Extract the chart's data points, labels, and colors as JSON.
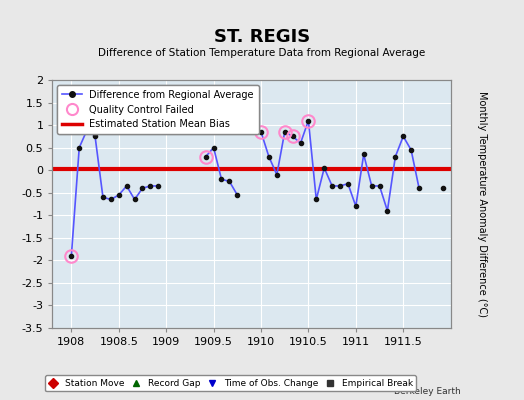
{
  "title": "ST. REGIS",
  "subtitle": "Difference of Station Temperature Data from Regional Average",
  "ylabel": "Monthly Temperature Anomaly Difference (°C)",
  "xlabel_bottom": "Berkeley Earth",
  "bias_value": 0.03,
  "background_color": "#e8e8e8",
  "plot_bg_color": "#dce8f0",
  "xlim": [
    1907.8,
    1912.0
  ],
  "ylim": [
    -3.5,
    2.0
  ],
  "xticks": [
    1908,
    1908.5,
    1909,
    1909.5,
    1910,
    1910.5,
    1911,
    1911.5
  ],
  "yticks": [
    -3.5,
    -3.0,
    -2.5,
    -2.0,
    -1.5,
    -1.0,
    -0.5,
    0.0,
    0.5,
    1.0,
    1.5,
    2.0
  ],
  "x_data": [
    1908.0,
    1908.083,
    1908.167,
    1908.25,
    1908.333,
    1908.417,
    1908.5,
    1908.583,
    1908.667,
    1908.75,
    1908.833,
    1908.917,
    1909.0,
    1909.083,
    1909.167,
    1909.25,
    1909.333,
    1909.417,
    1909.5,
    1909.583,
    1909.667,
    1909.75,
    1909.833,
    1909.917,
    1910.0,
    1910.083,
    1910.167,
    1910.25,
    1910.333,
    1910.417,
    1910.5,
    1910.583,
    1910.667,
    1910.75,
    1910.833,
    1910.917,
    1911.0,
    1911.083,
    1911.167,
    1911.25,
    1911.333,
    1911.417,
    1911.5,
    1911.583,
    1911.667,
    1911.75,
    1911.833,
    1911.917
  ],
  "y_data": [
    -1.9,
    0.5,
    0.9,
    0.75,
    -0.6,
    -0.65,
    -0.55,
    -0.35,
    -0.65,
    -0.4,
    -0.35,
    -0.35,
    null,
    null,
    null,
    null,
    null,
    0.3,
    0.5,
    -0.2,
    -0.25,
    -0.55,
    null,
    null,
    0.85,
    0.3,
    -0.1,
    0.85,
    0.75,
    0.6,
    1.1,
    -0.65,
    0.05,
    -0.35,
    -0.35,
    -0.3,
    -0.8,
    0.35,
    -0.35,
    -0.35,
    -0.9,
    0.3,
    0.75,
    0.45,
    -0.4,
    null,
    null,
    -0.4
  ],
  "qc_fail_indices": [
    0,
    17,
    24,
    27,
    28,
    30
  ],
  "line_color": "#5555ff",
  "dot_color": "#111111",
  "bias_color": "#dd0000",
  "qc_color": "#ff88cc",
  "legend_items": [
    {
      "label": "Difference from Regional Average",
      "type": "line",
      "color": "#5555ff"
    },
    {
      "label": "Quality Control Failed",
      "type": "circle",
      "color": "#ff88cc"
    },
    {
      "label": "Estimated Station Mean Bias",
      "type": "line",
      "color": "#dd0000"
    }
  ],
  "legend2_items": [
    {
      "label": "Station Move",
      "marker": "D",
      "color": "#cc0000"
    },
    {
      "label": "Record Gap",
      "marker": "^",
      "color": "#006600"
    },
    {
      "label": "Time of Obs. Change",
      "marker": "v",
      "color": "#0000cc"
    },
    {
      "label": "Empirical Break",
      "marker": "s",
      "color": "#333333"
    }
  ]
}
